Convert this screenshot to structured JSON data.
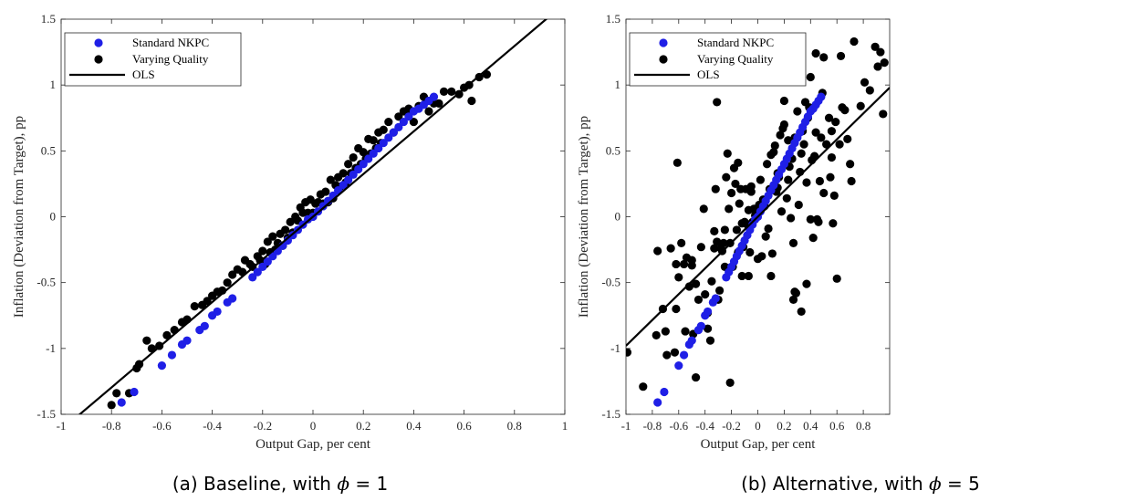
{
  "chart_data": [
    {
      "type": "scatter",
      "caption": "(a) Baseline, with ϕ = 1",
      "caption_prefix": "(a) Baseline, with ",
      "caption_symbol": "ϕ",
      "caption_suffix": " = 1",
      "xlabel": "Output Gap, per cent",
      "ylabel": "Inflation (Deviation from Target), pp",
      "xlim": [
        -1,
        1
      ],
      "ylim": [
        -1.5,
        1.5
      ],
      "xticks": [
        -1,
        -0.8,
        -0.6,
        -0.4,
        -0.2,
        0,
        0.2,
        0.4,
        0.6,
        0.8,
        1
      ],
      "xtick_labels": [
        "-1",
        "-0.8",
        "-0.6",
        "-0.4",
        "-0.2",
        "0",
        "0.2",
        "0.4",
        "0.6",
        "0.8",
        "1"
      ],
      "yticks": [
        -1.5,
        -1,
        -0.5,
        0,
        0.5,
        1,
        1.5
      ],
      "ytick_labels": [
        "-1.5",
        "-1",
        "-0.5",
        "0",
        "0.5",
        "1",
        "1.5"
      ],
      "grid": false,
      "legend_position": "top-left",
      "legend": [
        "Standard NKPC",
        "Varying Quality",
        "OLS"
      ],
      "series": [
        {
          "name": "Standard NKPC",
          "color": "#1f1fe6",
          "x": [
            -0.76,
            -0.71,
            -0.6,
            -0.56,
            -0.52,
            -0.5,
            -0.45,
            -0.43,
            -0.4,
            -0.38,
            -0.34,
            -0.32,
            -0.24,
            -0.22,
            -0.2,
            -0.18,
            -0.16,
            -0.14,
            -0.12,
            -0.1,
            -0.08,
            -0.06,
            -0.04,
            -0.02,
            0,
            0.02,
            0.04,
            0.06,
            0.08,
            0.1,
            0.12,
            0.14,
            0.16,
            0.18,
            0.2,
            0.22,
            0.24,
            0.26,
            0.28,
            0.3,
            0.32,
            0.34,
            0.36,
            0.38,
            0.4,
            0.42,
            0.44,
            0.46,
            0.48
          ],
          "y": [
            -1.41,
            -1.33,
            -1.13,
            -1.05,
            -0.97,
            -0.94,
            -0.86,
            -0.83,
            -0.75,
            -0.72,
            -0.65,
            -0.62,
            -0.46,
            -0.42,
            -0.38,
            -0.34,
            -0.3,
            -0.26,
            -0.22,
            -0.18,
            -0.14,
            -0.1,
            -0.06,
            -0.02,
            0.0,
            0.04,
            0.08,
            0.12,
            0.16,
            0.2,
            0.24,
            0.28,
            0.32,
            0.36,
            0.4,
            0.44,
            0.48,
            0.52,
            0.56,
            0.6,
            0.64,
            0.68,
            0.72,
            0.76,
            0.8,
            0.82,
            0.85,
            0.88,
            0.91
          ]
        },
        {
          "name": "Varying Quality",
          "color": "#000000",
          "x": [
            -0.8,
            -0.78,
            -0.73,
            -0.7,
            -0.69,
            -0.66,
            -0.64,
            -0.61,
            -0.58,
            -0.55,
            -0.52,
            -0.5,
            -0.47,
            -0.44,
            -0.42,
            -0.4,
            -0.38,
            -0.36,
            -0.34,
            -0.32,
            -0.3,
            -0.28,
            -0.27,
            -0.25,
            -0.24,
            -0.22,
            -0.21,
            -0.2,
            -0.19,
            -0.18,
            -0.17,
            -0.16,
            -0.15,
            -0.14,
            -0.13,
            -0.12,
            -0.11,
            -0.1,
            -0.09,
            -0.08,
            -0.07,
            -0.06,
            -0.05,
            -0.04,
            -0.03,
            -0.02,
            -0.01,
            0.0,
            0.01,
            0.02,
            0.03,
            0.04,
            0.05,
            0.06,
            0.07,
            0.08,
            0.09,
            0.1,
            0.11,
            0.12,
            0.13,
            0.14,
            0.15,
            0.16,
            0.17,
            0.18,
            0.19,
            0.2,
            0.21,
            0.22,
            0.23,
            0.24,
            0.25,
            0.26,
            0.27,
            0.28,
            0.3,
            0.32,
            0.34,
            0.36,
            0.38,
            0.4,
            0.42,
            0.44,
            0.46,
            0.48,
            0.5,
            0.52,
            0.55,
            0.58,
            0.6,
            0.62,
            0.63,
            0.66,
            0.69
          ],
          "y": [
            -1.43,
            -1.34,
            -1.34,
            -1.15,
            -1.12,
            -0.94,
            -1.0,
            -0.98,
            -0.9,
            -0.86,
            -0.8,
            -0.78,
            -0.68,
            -0.67,
            -0.64,
            -0.6,
            -0.57,
            -0.56,
            -0.5,
            -0.44,
            -0.4,
            -0.42,
            -0.33,
            -0.36,
            -0.38,
            -0.3,
            -0.33,
            -0.26,
            -0.36,
            -0.19,
            -0.27,
            -0.15,
            -0.25,
            -0.2,
            -0.13,
            -0.22,
            -0.1,
            -0.16,
            -0.04,
            -0.12,
            0.0,
            -0.03,
            0.07,
            0.03,
            0.11,
            0.03,
            0.13,
            0.03,
            0.1,
            0.11,
            0.17,
            0.1,
            0.19,
            0.11,
            0.28,
            0.14,
            0.24,
            0.3,
            0.23,
            0.33,
            0.26,
            0.4,
            0.33,
            0.45,
            0.37,
            0.52,
            0.4,
            0.49,
            0.44,
            0.59,
            0.48,
            0.58,
            0.52,
            0.64,
            0.56,
            0.66,
            0.72,
            0.64,
            0.76,
            0.8,
            0.82,
            0.72,
            0.84,
            0.91,
            0.8,
            0.86,
            0.86,
            0.95,
            0.95,
            0.93,
            0.98,
            1.0,
            0.88,
            1.06,
            1.08
          ]
        }
      ],
      "ols": {
        "name": "OLS",
        "intercept": 0.0,
        "slope": 1.62
      }
    },
    {
      "type": "scatter",
      "caption": "(b) Alternative, with ϕ = 5",
      "caption_prefix": "(b) Alternative, with ",
      "caption_symbol": "ϕ",
      "caption_suffix": " = 5",
      "xlabel": "Output Gap, per cent",
      "ylabel": "Inflation (Deviation from Target), pp",
      "xlim": [
        -1,
        1
      ],
      "ylim": [
        -1.5,
        1.5
      ],
      "xticks": [
        -1,
        -0.8,
        -0.6,
        -0.4,
        -0.2,
        0,
        0.2,
        0.4,
        0.6,
        0.8
      ],
      "xtick_labels": [
        "-1",
        "-0.8",
        "-0.6",
        "-0.4",
        "-0.2",
        "0",
        "0.2",
        "0.4",
        "0.6",
        "0.8"
      ],
      "yticks": [
        -1.5,
        -1,
        -0.5,
        0,
        0.5,
        1,
        1.5
      ],
      "ytick_labels": [
        "-1.5",
        "-1",
        "-0.5",
        "0",
        "0.5",
        "1",
        "1.5"
      ],
      "grid": false,
      "legend_position": "top-left",
      "legend": [
        "Standard NKPC",
        "Varying Quality",
        "OLS"
      ],
      "series": [
        {
          "name": "Standard NKPC",
          "color": "#1f1fe6",
          "x": [
            -0.76,
            -0.71,
            -0.6,
            -0.56,
            -0.52,
            -0.5,
            -0.45,
            -0.43,
            -0.4,
            -0.38,
            -0.34,
            -0.32,
            -0.24,
            -0.22,
            -0.2,
            -0.18,
            -0.16,
            -0.14,
            -0.12,
            -0.1,
            -0.08,
            -0.06,
            -0.04,
            -0.02,
            0,
            0.02,
            0.04,
            0.06,
            0.08,
            0.1,
            0.12,
            0.14,
            0.16,
            0.18,
            0.2,
            0.22,
            0.24,
            0.26,
            0.28,
            0.3,
            0.32,
            0.34,
            0.36,
            0.38,
            0.4,
            0.42,
            0.44,
            0.46,
            0.48
          ],
          "y": [
            -1.41,
            -1.33,
            -1.13,
            -1.05,
            -0.97,
            -0.94,
            -0.86,
            -0.83,
            -0.75,
            -0.72,
            -0.65,
            -0.62,
            -0.46,
            -0.42,
            -0.38,
            -0.34,
            -0.3,
            -0.26,
            -0.22,
            -0.18,
            -0.14,
            -0.1,
            -0.06,
            -0.02,
            0.0,
            0.04,
            0.08,
            0.12,
            0.16,
            0.2,
            0.24,
            0.28,
            0.32,
            0.36,
            0.4,
            0.44,
            0.48,
            0.52,
            0.56,
            0.6,
            0.64,
            0.68,
            0.72,
            0.76,
            0.8,
            0.82,
            0.85,
            0.88,
            0.91
          ]
        },
        {
          "name": "Varying Quality",
          "color": "#000000",
          "x": [
            -0.99,
            -0.87,
            -0.76,
            -0.72,
            -0.7,
            -0.69,
            -0.66,
            -0.63,
            -0.62,
            -0.61,
            -0.6,
            -0.58,
            -0.56,
            -0.55,
            -0.54,
            -0.52,
            -0.5,
            -0.49,
            -0.47,
            -0.45,
            -0.43,
            -0.41,
            -0.4,
            -0.38,
            -0.36,
            -0.35,
            -0.33,
            -0.32,
            -0.31,
            -0.3,
            -0.29,
            -0.28,
            -0.27,
            -0.26,
            -0.25,
            -0.24,
            -0.23,
            -0.22,
            -0.21,
            -0.2,
            -0.19,
            -0.18,
            -0.17,
            -0.16,
            -0.15,
            -0.14,
            -0.13,
            -0.12,
            -0.11,
            -0.1,
            -0.09,
            -0.08,
            -0.07,
            -0.06,
            -0.05,
            -0.04,
            -0.03,
            -0.02,
            -0.01,
            0.0,
            0.01,
            0.02,
            0.03,
            0.04,
            0.05,
            0.06,
            0.07,
            0.08,
            0.09,
            0.1,
            0.11,
            0.12,
            0.13,
            0.14,
            0.15,
            0.16,
            0.17,
            0.18,
            0.19,
            0.2,
            0.21,
            0.22,
            0.23,
            0.24,
            0.25,
            0.26,
            0.27,
            0.28,
            0.29,
            0.3,
            0.31,
            0.32,
            0.33,
            0.34,
            0.35,
            0.36,
            0.37,
            0.38,
            0.39,
            0.4,
            0.41,
            0.42,
            0.43,
            0.44,
            0.45,
            0.46,
            0.47,
            0.48,
            0.49,
            0.5,
            0.52,
            0.54,
            0.55,
            0.56,
            0.57,
            0.58,
            0.59,
            0.6,
            0.62,
            0.64,
            0.66,
            0.68,
            0.7,
            0.73,
            0.78,
            0.81,
            0.85,
            0.89,
            0.91,
            0.93,
            0.95,
            0.96,
            -0.31,
            -0.5,
            -0.62,
            -0.77,
            -0.47,
            -0.38,
            -0.25,
            -0.21,
            -0.12,
            -0.05,
            0.1,
            0.23,
            0.27,
            0.33,
            0.37,
            0.44,
            0.5,
            0.56,
            0.63,
            0.71,
            0.4,
            0.28,
            0.2,
            0.15,
            -0.07,
            -0.15,
            -0.33
          ],
          "y": [
            -1.03,
            -1.29,
            -0.26,
            -0.7,
            -0.87,
            -1.05,
            -0.24,
            -1.03,
            -0.36,
            0.41,
            -0.46,
            -0.2,
            -0.36,
            -0.87,
            -0.31,
            -0.53,
            -0.37,
            -0.89,
            -0.51,
            -0.63,
            -0.23,
            0.06,
            -0.59,
            -0.73,
            -0.94,
            -0.49,
            -0.11,
            0.21,
            0.87,
            -0.63,
            -0.56,
            -0.24,
            -0.26,
            -0.2,
            -0.38,
            0.3,
            0.48,
            0.06,
            -0.2,
            0.18,
            -0.38,
            0.37,
            0.25,
            -0.1,
            -0.27,
            0.1,
            0.21,
            -0.05,
            -0.23,
            -0.04,
            0.21,
            -0.06,
            -0.45,
            -0.27,
            0.19,
            -0.04,
            0.06,
            0.01,
            0.03,
            -0.32,
            0.09,
            0.28,
            -0.3,
            0.13,
            0.08,
            -0.15,
            0.4,
            -0.09,
            0.21,
            0.47,
            -0.28,
            0.49,
            0.54,
            0.19,
            0.33,
            0.3,
            0.62,
            0.04,
            0.67,
            0.88,
            1.05,
            0.14,
            0.58,
            0.38,
            -0.01,
            0.44,
            -0.2,
            0.6,
            -0.58,
            0.8,
            0.09,
            0.34,
            0.48,
            0.65,
            0.55,
            0.87,
            0.26,
            0.75,
            0.83,
            1.06,
            0.43,
            -0.16,
            0.46,
            0.64,
            -0.02,
            -0.04,
            0.27,
            0.6,
            0.94,
            0.18,
            0.55,
            0.75,
            0.3,
            0.45,
            -0.05,
            0.16,
            0.72,
            -0.47,
            0.55,
            0.83,
            0.81,
            0.59,
            0.4,
            1.33,
            0.84,
            1.02,
            0.96,
            1.29,
            1.14,
            1.25,
            0.78,
            1.17,
            -0.19,
            -0.33,
            -0.7,
            -0.9,
            -1.22,
            -0.85,
            -0.1,
            -1.26,
            -0.45,
            0.23,
            -0.45,
            0.28,
            -0.63,
            -0.72,
            -0.51,
            1.24,
            1.21,
            0.65,
            1.22,
            0.27,
            -0.02,
            -0.57,
            0.7,
            0.22,
            0.05,
            0.41,
            -0.24
          ]
        }
      ],
      "ols": {
        "name": "OLS",
        "intercept": -0.0,
        "slope": 0.98
      }
    }
  ]
}
